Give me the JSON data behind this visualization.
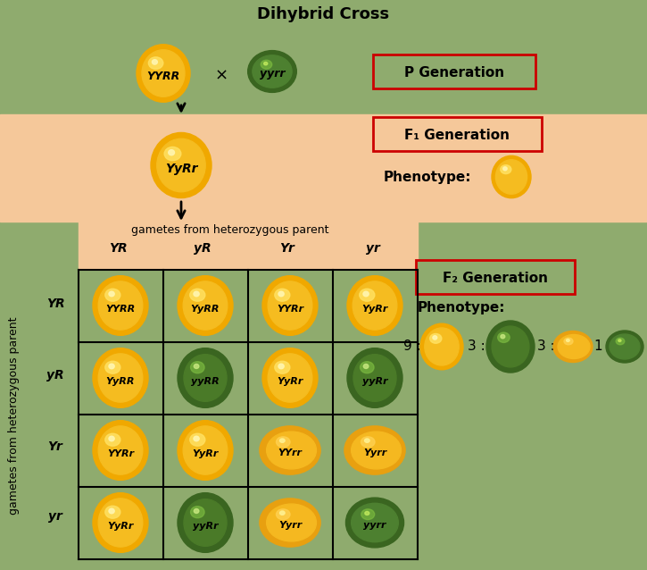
{
  "title": "Dihybrid Cross",
  "bg_green": "#8fab6e",
  "bg_peach": "#f5c89a",
  "col_labels": [
    "YR",
    "yR",
    "Yr",
    "yr"
  ],
  "row_labels": [
    "YR",
    "yR",
    "Yr",
    "yr"
  ],
  "cells": [
    [
      "YYRR",
      "YyRR",
      "YYRr",
      "YyRr"
    ],
    [
      "YyRR",
      "yyRR",
      "YyRr",
      "yyRr"
    ],
    [
      "YYRr",
      "YyRr",
      "YYrr",
      "Yyrr"
    ],
    [
      "YyRr",
      "yyRr",
      "Yyrr",
      "yyrr"
    ]
  ],
  "cell_colors": [
    [
      "yellow",
      "yellow",
      "yellow",
      "yellow"
    ],
    [
      "yellow",
      "green",
      "yellow",
      "green"
    ],
    [
      "yellow",
      "yellow",
      "yellow_wrinkled",
      "yellow_wrinkled"
    ],
    [
      "yellow",
      "green",
      "yellow_wrinkled",
      "green_wrinkled"
    ]
  ],
  "p_parent1": "YYRR",
  "p_parent2": "yyrr",
  "f1_offspring": "YyRr",
  "p_gen_label": "P Generation",
  "f1_gen_label": "F₁ Generation",
  "f2_gen_label": "F₂ Generation",
  "phenotype_label": "Phenotype:",
  "gametes_top": "gametes from heterozygous parent",
  "gametes_side": "gametes from heterozygous parent"
}
